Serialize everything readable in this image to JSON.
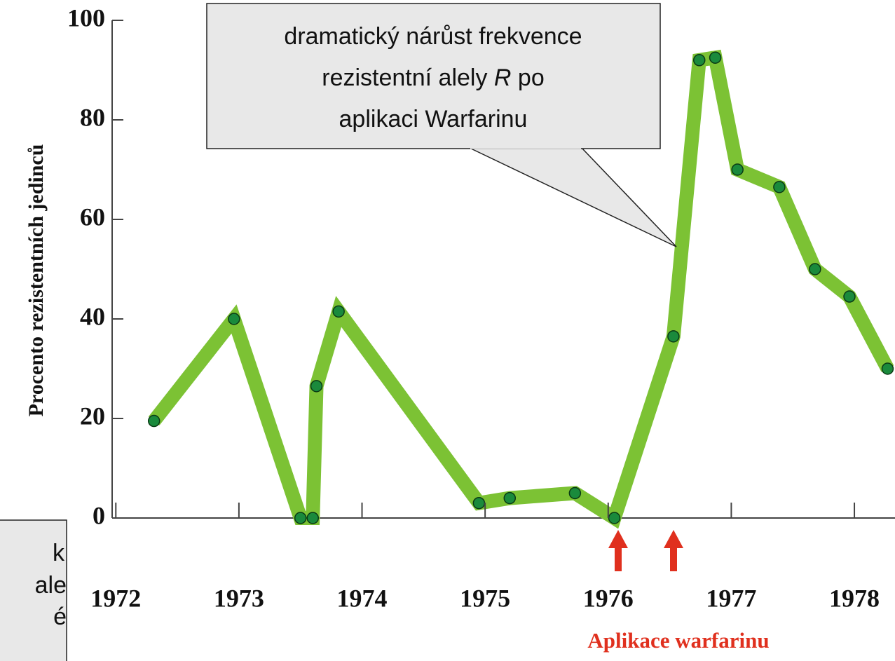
{
  "chart_data": {
    "type": "line",
    "y_label": "Procento rezistentních jedinců",
    "annotation": {
      "lines": [
        "dramatický nárůst frekvence",
        "rezistentní alely ",
        "R",
        " po",
        "aplikaci Warfarinu"
      ]
    },
    "side_note": [
      "k",
      "ale",
      "é"
    ],
    "arrow_label": "Aplikace warfarinu",
    "x": [
      1972.31,
      1972.96,
      1973.5,
      1973.6,
      1973.63,
      1973.81,
      1974.95,
      1975.2,
      1975.73,
      1976.05,
      1976.53,
      1976.74,
      1976.87,
      1977.05,
      1977.39,
      1977.68,
      1977.96,
      1978.27
    ],
    "series": [
      {
        "color": "#7cc234",
        "marker_color": "#1a8a3c",
        "values": [
          19.5,
          40,
          0,
          0,
          26.5,
          41.5,
          3,
          4,
          5,
          0,
          36.5,
          92,
          92.5,
          70,
          66.5,
          50,
          44.5,
          30
        ]
      }
    ],
    "xlim": [
      1971.97,
      1978.33
    ],
    "xticks": [
      1972,
      1973,
      1974,
      1975,
      1976,
      1977,
      1978
    ],
    "ylim": [
      0,
      100
    ],
    "yticks": [
      0,
      20,
      40,
      60,
      80,
      100
    ]
  }
}
